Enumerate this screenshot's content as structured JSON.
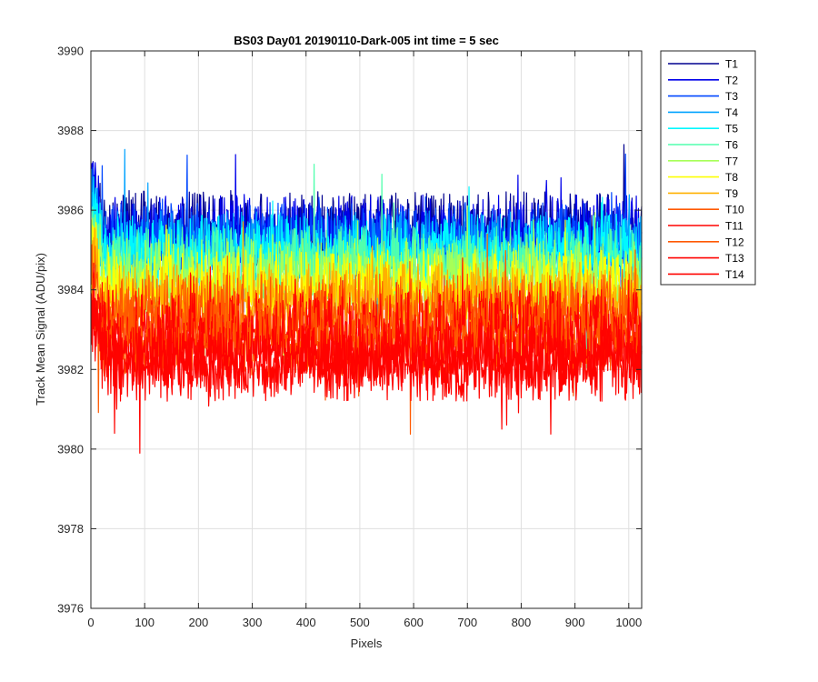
{
  "chart_data": {
    "type": "line",
    "title": "BS03 Day01 20190110-Dark-005 int time = 5 sec",
    "xlabel": "Pixels",
    "ylabel": "Track Mean Signal (ADU/pix)",
    "xlim": [
      0,
      1024
    ],
    "ylim": [
      3976,
      3990
    ],
    "x_ticks": [
      "0",
      "100",
      "200",
      "300",
      "400",
      "500",
      "600",
      "700",
      "800",
      "900",
      "1000"
    ],
    "y_ticks": [
      "3976",
      "3978",
      "3980",
      "3982",
      "3984",
      "3986",
      "3988",
      "3990"
    ],
    "grid": true,
    "legend_position": "outside top-right",
    "x_sampling": {
      "start": 1,
      "end": 1024,
      "step": 1
    },
    "series": [
      {
        "name": "T1",
        "color": "#00008f",
        "mean": 3985.5,
        "spread_upper": 1.0,
        "spread_lower": 0.9
      },
      {
        "name": "T2",
        "color": "#0000ea",
        "mean": 3985.4,
        "spread_upper": 1.0,
        "spread_lower": 0.9
      },
      {
        "name": "T3",
        "color": "#0047ff",
        "mean": 3985.2,
        "spread_upper": 1.0,
        "spread_lower": 0.9
      },
      {
        "name": "T4",
        "color": "#00a2ff",
        "mean": 3985.0,
        "spread_upper": 1.0,
        "spread_lower": 0.9
      },
      {
        "name": "T5",
        "color": "#00f8ff",
        "mean": 3984.9,
        "spread_upper": 1.0,
        "spread_lower": 0.9
      },
      {
        "name": "T6",
        "color": "#51ffad",
        "mean": 3984.6,
        "spread_upper": 1.0,
        "spread_lower": 0.9
      },
      {
        "name": "T7",
        "color": "#a7ff57",
        "mean": 3984.3,
        "spread_upper": 1.0,
        "spread_lower": 0.9
      },
      {
        "name": "T8",
        "color": "#fdff02",
        "mean": 3984.0,
        "spread_upper": 1.0,
        "spread_lower": 0.9
      },
      {
        "name": "T9",
        "color": "#ffb000",
        "mean": 3983.7,
        "spread_upper": 1.0,
        "spread_lower": 0.9
      },
      {
        "name": "T10",
        "color": "#ff5900",
        "mean": 3983.4,
        "spread_upper": 1.0,
        "spread_lower": 0.9
      },
      {
        "name": "T11",
        "color": "#ff0300",
        "mean": 3983.0,
        "spread_upper": 1.0,
        "spread_lower": 0.9
      },
      {
        "name": "T12",
        "color": "#ff5900",
        "mean": 3982.7,
        "spread_upper": 1.0,
        "spread_lower": 0.9
      },
      {
        "name": "T13",
        "color": "#ff0300",
        "mean": 3982.4,
        "spread_upper": 1.0,
        "spread_lower": 0.9
      },
      {
        "name": "T14",
        "color": "#ff0300",
        "mean": 3982.1,
        "spread_upper": 1.0,
        "spread_lower": 0.9
      }
    ]
  }
}
